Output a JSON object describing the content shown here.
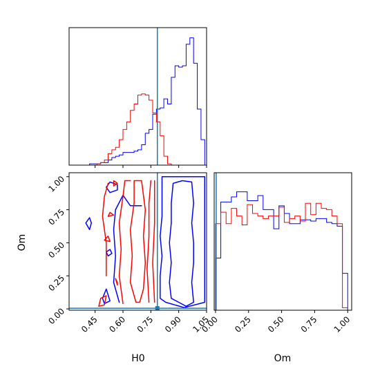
{
  "chart_data": {
    "type": "corner",
    "parameters": [
      "H0",
      "Om"
    ],
    "truth": {
      "H0": 0.785,
      "Om": 0.005,
      "color": "#1f77b4"
    },
    "series": [
      {
        "color": "#0000ff"
      },
      {
        "color": "#ff0000"
      }
    ],
    "panels": [
      {
        "id": "hist-H0",
        "type": "histogram",
        "x_param": "H0",
        "xlim": [
          0.31,
          1.05
        ],
        "ylim": [
          0,
          1.08
        ],
        "bin_edges": [
          0.32,
          0.34,
          0.36,
          0.38,
          0.4,
          0.42,
          0.44,
          0.46,
          0.48,
          0.5,
          0.52,
          0.54,
          0.56,
          0.58,
          0.6,
          0.62,
          0.64,
          0.66,
          0.68,
          0.7,
          0.72,
          0.74,
          0.76,
          0.78,
          0.8,
          0.82,
          0.84,
          0.86,
          0.88,
          0.9,
          0.92,
          0.94,
          0.96,
          0.98,
          1.0,
          1.02,
          1.04
        ],
        "series_values": [
          [
            0.0,
            0.0,
            0.0,
            0.0,
            0.0,
            0.01,
            0.01,
            0.01,
            0.02,
            0.02,
            0.04,
            0.06,
            0.07,
            0.08,
            0.1,
            0.1,
            0.1,
            0.11,
            0.12,
            0.16,
            0.25,
            0.28,
            0.4,
            0.44,
            0.45,
            0.52,
            0.48,
            0.69,
            0.78,
            0.77,
            0.78,
            0.95,
            1.0,
            0.8,
            0.44,
            0.2
          ],
          [
            0.0,
            0.0,
            0.0,
            0.0,
            0.0,
            0.0,
            0.0,
            0.01,
            0.02,
            0.04,
            0.09,
            0.12,
            0.14,
            0.2,
            0.28,
            0.34,
            0.43,
            0.48,
            0.55,
            0.56,
            0.55,
            0.51,
            0.41,
            0.34,
            0.23,
            0.07,
            0.01,
            0.0,
            0.0,
            0.0,
            0.0,
            0.0,
            0.0,
            0.0,
            0.0,
            0.0
          ]
        ]
      },
      {
        "id": "contour-H0-Om",
        "type": "contour",
        "x_param": "H0",
        "y_param": "Om",
        "xlim": [
          0.31,
          1.05
        ],
        "ylim": [
          -0.01,
          1.03
        ],
        "x_ticks": [
          "0.45",
          "0.60",
          "0.75",
          "0.90",
          "1.05"
        ],
        "x_tick_values": [
          0.45,
          0.6,
          0.75,
          0.9,
          1.05
        ],
        "y_ticks": [
          "0.00",
          "0.25",
          "0.50",
          "0.75",
          "1.00"
        ],
        "y_tick_values": [
          0.0,
          0.25,
          0.5,
          0.75,
          1.0
        ],
        "xlabel": "H0",
        "ylabel": "Om",
        "series_contours": [
          [
            [
              [
                0.9,
                0.05
              ],
              [
                0.86,
                0.08
              ],
              [
                0.85,
                0.2
              ],
              [
                0.86,
                0.35
              ],
              [
                0.85,
                0.5
              ],
              [
                0.86,
                0.65
              ],
              [
                0.86,
                0.8
              ],
              [
                0.87,
                0.95
              ],
              [
                0.92,
                0.97
              ],
              [
                0.97,
                0.96
              ],
              [
                0.98,
                0.8
              ],
              [
                0.97,
                0.65
              ],
              [
                0.98,
                0.5
              ],
              [
                0.98,
                0.35
              ],
              [
                0.97,
                0.2
              ],
              [
                0.98,
                0.05
              ],
              [
                0.94,
                0.02
              ],
              [
                0.9,
                0.05
              ]
            ],
            [
              [
                0.83,
                0.05
              ],
              [
                0.8,
                0.08
              ],
              [
                0.8,
                0.25
              ],
              [
                0.81,
                0.4
              ],
              [
                0.8,
                0.55
              ],
              [
                0.81,
                0.7
              ],
              [
                0.81,
                0.85
              ],
              [
                0.81,
                1.0
              ],
              [
                1.04,
                1.0
              ],
              [
                1.04,
                0.05
              ],
              [
                0.93,
                0.01
              ],
              [
                0.83,
                0.05
              ]
            ],
            [
              [
                0.58,
                0.05
              ],
              [
                0.55,
                0.2
              ],
              [
                0.56,
                0.4
              ],
              [
                0.55,
                0.6
              ],
              [
                0.56,
                0.75
              ],
              [
                0.6,
                0.86
              ],
              [
                0.64,
                0.78
              ],
              [
                0.7,
                0.78
              ]
            ],
            [
              [
                0.4,
                0.65
              ],
              [
                0.42,
                0.69
              ],
              [
                0.43,
                0.65
              ],
              [
                0.42,
                0.6
              ],
              [
                0.4,
                0.65
              ]
            ],
            [
              [
                0.51,
                0.15
              ],
              [
                0.49,
                0.08
              ],
              [
                0.5,
                0.04
              ],
              [
                0.53,
                0.06
              ],
              [
                0.51,
                0.15
              ]
            ],
            [
              [
                0.51,
                0.43
              ],
              [
                0.53,
                0.45
              ],
              [
                0.54,
                0.42
              ],
              [
                0.52,
                0.4
              ],
              [
                0.51,
                0.43
              ]
            ],
            [
              [
                0.51,
                0.92
              ],
              [
                0.53,
                0.96
              ],
              [
                0.57,
                0.94
              ],
              [
                0.57,
                0.9
              ],
              [
                0.53,
                0.88
              ],
              [
                0.51,
                0.92
              ]
            ]
          ],
          [
            [
              [
                0.67,
                0.05
              ],
              [
                0.64,
                0.2
              ],
              [
                0.65,
                0.4
              ],
              [
                0.64,
                0.6
              ],
              [
                0.66,
                0.8
              ],
              [
                0.66,
                0.97
              ],
              [
                0.7,
                0.97
              ],
              [
                0.72,
                0.75
              ],
              [
                0.71,
                0.55
              ],
              [
                0.72,
                0.35
              ],
              [
                0.71,
                0.15
              ],
              [
                0.69,
                0.05
              ],
              [
                0.67,
                0.05
              ]
            ],
            [
              [
                0.6,
                0.04
              ],
              [
                0.58,
                0.25
              ],
              [
                0.59,
                0.45
              ],
              [
                0.58,
                0.65
              ],
              [
                0.6,
                0.85
              ],
              [
                0.61,
                0.97
              ],
              [
                0.64,
                0.97
              ]
            ],
            [
              [
                0.51,
                0.25
              ],
              [
                0.51,
                0.5
              ],
              [
                0.49,
                0.7
              ],
              [
                0.5,
                0.85
              ],
              [
                0.52,
                0.95
              ]
            ],
            [
              [
                0.57,
                0.2
              ],
              [
                0.56,
                0.23
              ],
              [
                0.57,
                0.18
              ],
              [
                0.57,
                0.2
              ]
            ],
            [
              [
                0.47,
                0.02
              ],
              [
                0.5,
                0.03
              ],
              [
                0.51,
                0.1
              ],
              [
                0.48,
                0.08
              ],
              [
                0.47,
                0.02
              ]
            ],
            [
              [
                0.5,
                0.52
              ],
              [
                0.52,
                0.55
              ],
              [
                0.53,
                0.51
              ],
              [
                0.5,
                0.52
              ]
            ],
            [
              [
                0.52,
                0.7
              ],
              [
                0.53,
                0.73
              ],
              [
                0.55,
                0.71
              ],
              [
                0.52,
                0.7
              ]
            ],
            [
              [
                0.55,
                0.93
              ],
              [
                0.55,
                0.97
              ],
              [
                0.57,
                0.95
              ],
              [
                0.55,
                0.93
              ]
            ],
            [
              [
                0.74,
                0.05
              ],
              [
                0.73,
                0.3
              ],
              [
                0.74,
                0.55
              ],
              [
                0.74,
                0.8
              ],
              [
                0.75,
                0.97
              ]
            ],
            [
              [
                0.77,
                0.05
              ],
              [
                0.76,
                0.35
              ],
              [
                0.77,
                0.65
              ],
              [
                0.77,
                0.97
              ]
            ]
          ]
        ]
      },
      {
        "id": "hist-Om",
        "type": "histogram",
        "x_param": "Om",
        "xlim": [
          -0.01,
          1.03
        ],
        "ylim": [
          0,
          1.08
        ],
        "x_ticks": [
          "0.00",
          "0.25",
          "0.50",
          "0.75",
          "1.00"
        ],
        "x_tick_values": [
          0.0,
          0.25,
          0.5,
          0.75,
          1.0
        ],
        "xlabel": "Om",
        "bin_edges": [
          0.0,
          0.04,
          0.08,
          0.12,
          0.16,
          0.2,
          0.24,
          0.28,
          0.32,
          0.36,
          0.4,
          0.44,
          0.48,
          0.52,
          0.56,
          0.6,
          0.64,
          0.68,
          0.72,
          0.76,
          0.8,
          0.84,
          0.88,
          0.92,
          0.96,
          1.0
        ],
        "series_values": [
          [
            0.41,
            0.85,
            0.85,
            0.89,
            0.93,
            0.93,
            0.86,
            0.86,
            0.9,
            0.79,
            0.79,
            0.64,
            0.82,
            0.76,
            0.68,
            0.68,
            0.71,
            0.71,
            0.7,
            0.72,
            0.72,
            0.69,
            0.68,
            0.66,
            0.29
          ],
          [
            0.68,
            0.77,
            0.68,
            0.8,
            0.74,
            0.67,
            0.83,
            0.76,
            0.74,
            0.72,
            0.74,
            0.74,
            0.81,
            0.69,
            0.72,
            0.74,
            0.7,
            0.84,
            0.75,
            0.84,
            0.8,
            0.79,
            0.74,
            0.68,
            0.02
          ]
        ]
      }
    ]
  }
}
